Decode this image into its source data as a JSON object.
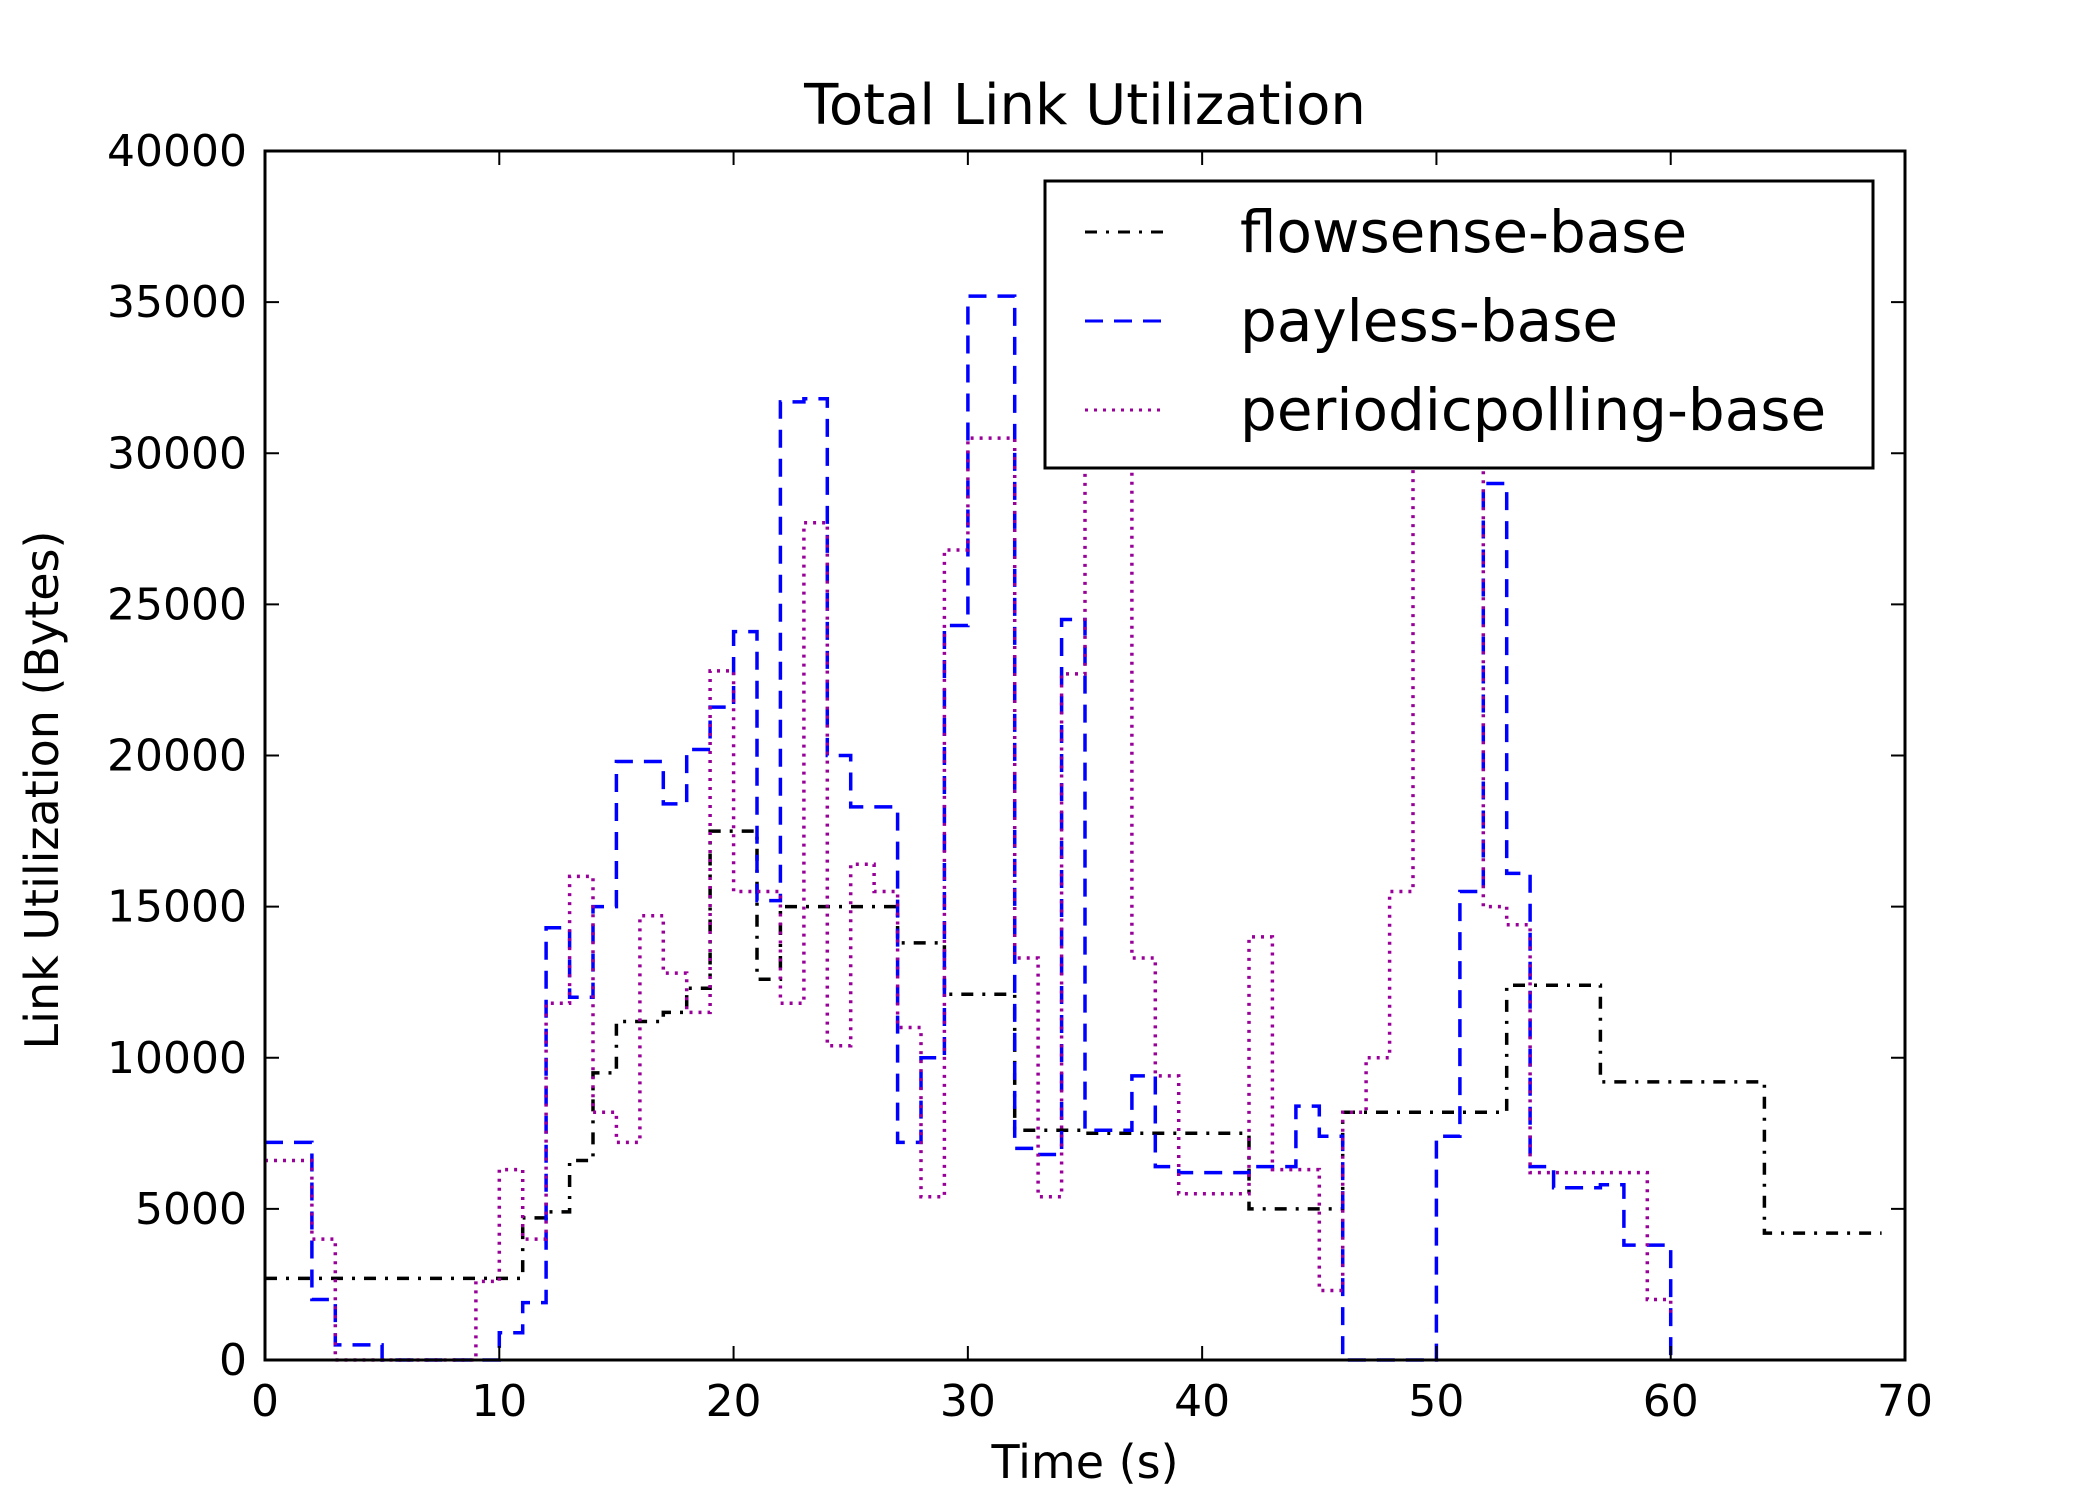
{
  "chart_data": {
    "type": "line",
    "step": "post",
    "title": "Total Link Utilization",
    "xlabel": "Time (s)",
    "ylabel": "Link Utilization (Bytes)",
    "xlim": [
      0,
      70
    ],
    "ylim": [
      0,
      40000
    ],
    "xticks": [
      "0",
      "10",
      "20",
      "30",
      "40",
      "50",
      "60",
      "70"
    ],
    "yticks": [
      "0",
      "5000",
      "10000",
      "15000",
      "20000",
      "25000",
      "30000",
      "35000",
      "40000"
    ],
    "grid": false,
    "legend_position": "top-right",
    "series": [
      {
        "name": "flowsense-base",
        "color": "#000000",
        "dash": "dash-dot",
        "x": [
          0,
          9,
          10,
          11,
          12,
          13,
          14,
          15,
          17,
          18,
          19,
          21,
          22,
          27,
          29,
          32,
          35,
          37,
          42,
          45,
          46,
          47,
          49,
          53,
          54,
          57,
          64,
          69
        ],
        "y": [
          2700,
          2700,
          2700,
          4700,
          4900,
          6600,
          9500,
          11200,
          11500,
          12300,
          17500,
          12600,
          15000,
          13800,
          12100,
          7600,
          7500,
          7500,
          5000,
          5000,
          8200,
          8200,
          8200,
          12400,
          12400,
          9200,
          4200,
          4200
        ]
      },
      {
        "name": "payless-base",
        "color": "#0000ff",
        "dash": "dash",
        "x": [
          0,
          2,
          3,
          5,
          7,
          10,
          11,
          12,
          13,
          14,
          15,
          17,
          18,
          19,
          20,
          21,
          22,
          23,
          24,
          25,
          27,
          28,
          29,
          30,
          31,
          32,
          33,
          34,
          35,
          36,
          37,
          38,
          39,
          40,
          42,
          44,
          45,
          46,
          47,
          50,
          51,
          52,
          53,
          54,
          55,
          57,
          58,
          59,
          60
        ],
        "y": [
          7200,
          2000,
          500,
          0,
          0,
          900,
          1900,
          14300,
          12000,
          15000,
          19800,
          18400,
          20200,
          21600,
          24100,
          15200,
          31700,
          31800,
          20000,
          18300,
          7200,
          10000,
          24300,
          35200,
          35200,
          7000,
          6800,
          24500,
          7600,
          7600,
          9400,
          6400,
          6200,
          6200,
          6400,
          8400,
          7400,
          0,
          0,
          7400,
          15500,
          29000,
          16100,
          6400,
          5700,
          5800,
          3800,
          3800,
          0
        ]
      },
      {
        "name": "periodicpolling-base",
        "color": "#990099",
        "dash": "dot",
        "x": [
          0,
          2,
          3,
          9,
          10,
          11,
          12,
          13,
          14,
          15,
          16,
          17,
          18,
          19,
          20,
          21,
          22,
          23,
          24,
          25,
          26,
          27,
          28,
          29,
          30,
          31,
          32,
          33,
          34,
          35,
          36,
          37,
          38,
          39,
          40,
          42,
          43,
          44,
          45,
          46,
          47,
          48,
          49,
          50,
          51,
          52,
          53,
          54,
          55,
          57,
          58,
          59,
          60
        ],
        "y": [
          6600,
          4000,
          0,
          2600,
          6300,
          4000,
          11800,
          16000,
          8200,
          7200,
          14700,
          12800,
          11500,
          22800,
          15500,
          15500,
          11800,
          27700,
          10400,
          16400,
          15500,
          11000,
          5400,
          26800,
          30500,
          30500,
          13300,
          5400,
          22700,
          30000,
          30000,
          13300,
          9400,
          5500,
          5500,
          14000,
          6300,
          6300,
          2300,
          8200,
          10000,
          15500,
          30000,
          30000,
          30000,
          15000,
          14400,
          6200,
          6200,
          6200,
          6200,
          2000,
          1500
        ]
      }
    ]
  }
}
